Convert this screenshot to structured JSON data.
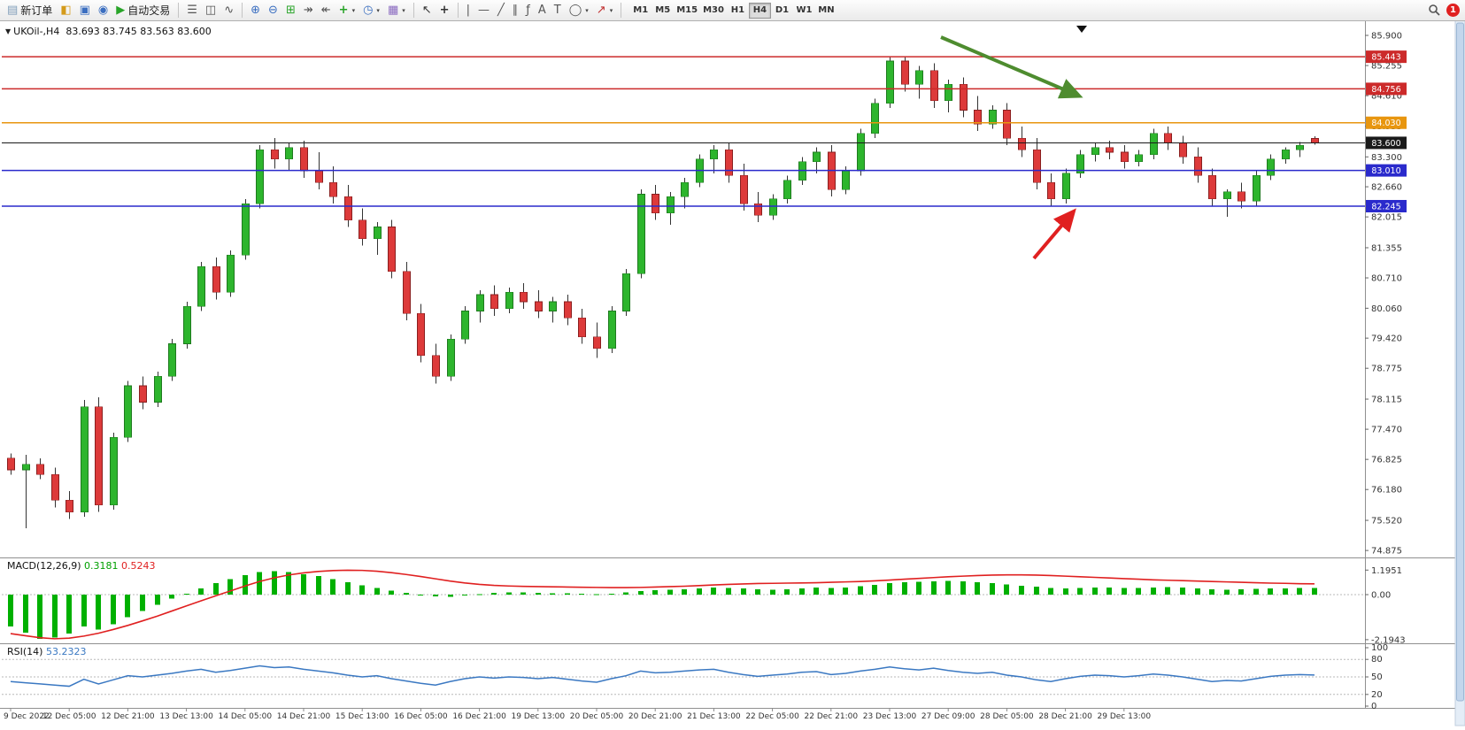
{
  "toolbar": {
    "new_order": "新订单",
    "autotrading": "自动交易",
    "notification_badge": "1",
    "timeframes": [
      "M1",
      "M5",
      "M15",
      "M30",
      "H1",
      "H4",
      "D1",
      "W1",
      "MN"
    ],
    "active_timeframe": "H4",
    "items": [
      {
        "name": "new-order",
        "glyph": "▤",
        "color": "#7f9db9",
        "label": "新订单"
      },
      {
        "name": "new-chart",
        "glyph": "◧",
        "color": "#d49a1a"
      },
      {
        "name": "market-watch",
        "glyph": "▣",
        "color": "#3a6ec0"
      },
      {
        "name": "navigator",
        "glyph": "◉",
        "color": "#3a6ec0"
      },
      {
        "name": "autotrading",
        "glyph": "▶",
        "color": "#28a428",
        "label": "自动交易"
      },
      {
        "sep": true
      },
      {
        "name": "bar-chart-mode",
        "glyph": "☰",
        "color": "#555"
      },
      {
        "name": "candle-chart-mode",
        "glyph": "◫",
        "color": "#555"
      },
      {
        "name": "line-chart-mode",
        "glyph": "∿",
        "color": "#555"
      },
      {
        "sep": true
      },
      {
        "name": "zoom-in",
        "glyph": "⊕",
        "color": "#3a6ec0"
      },
      {
        "name": "zoom-out",
        "glyph": "⊖",
        "color": "#3a6ec0"
      },
      {
        "name": "tile-windows",
        "glyph": "⊞",
        "color": "#28a428"
      },
      {
        "name": "auto-scroll",
        "glyph": "↠",
        "color": "#555"
      },
      {
        "name": "chart-shift",
        "glyph": "↞",
        "color": "#555"
      },
      {
        "name": "indicators",
        "glyph": "+",
        "color": "#28a428",
        "caret": true
      },
      {
        "name": "periods",
        "glyph": "◷",
        "color": "#3a6ec0",
        "caret": true
      },
      {
        "name": "templates",
        "glyph": "▦",
        "color": "#8a6ac0",
        "caret": true
      },
      {
        "sep": true
      },
      {
        "name": "cursor",
        "glyph": "↖",
        "color": "#333"
      },
      {
        "name": "crosshair",
        "glyph": "+",
        "color": "#333"
      },
      {
        "sep": true
      },
      {
        "name": "vertical-line",
        "glyph": "|",
        "color": "#555"
      },
      {
        "name": "horizontal-line",
        "glyph": "—",
        "color": "#555"
      },
      {
        "name": "trendline",
        "glyph": "╱",
        "color": "#555"
      },
      {
        "name": "equidistant-channel",
        "glyph": "∥",
        "color": "#555"
      },
      {
        "name": "fibonacci",
        "glyph": "ƒ",
        "color": "#555"
      },
      {
        "name": "text",
        "glyph": "A",
        "color": "#555"
      },
      {
        "name": "label",
        "glyph": "T",
        "color": "#555"
      },
      {
        "name": "shapes",
        "glyph": "◯",
        "color": "#555",
        "caret": true
      },
      {
        "name": "arrow-objects",
        "glyph": "↗",
        "color": "#c03030",
        "caret": true
      },
      {
        "sep": true
      }
    ]
  },
  "chart": {
    "symbol_info": "UKOil-,H4  83.693 83.745 83.563 83.600",
    "price_axis_labels": [
      "85.900",
      "85.255",
      "84.610",
      "83.955",
      "83.300",
      "82.660",
      "82.015",
      "81.355",
      "80.710",
      "80.060",
      "79.420",
      "78.775",
      "78.115",
      "77.470",
      "76.825",
      "76.180",
      "75.520",
      "74.875"
    ],
    "macd_axis_labels": [
      "1.1951",
      "0.00",
      "-2.1943"
    ],
    "rsi_axis_labels": [
      "100",
      "80",
      "50",
      "20",
      "0"
    ],
    "levels": [
      {
        "value": "85.443",
        "price": 85.443,
        "color": "#cc2a2a",
        "current": false
      },
      {
        "value": "84.756",
        "price": 84.756,
        "color": "#cc2a2a",
        "current": false
      },
      {
        "value": "84.030",
        "price": 84.03,
        "color": "#e8960f",
        "current": false
      },
      {
        "value": "83.600",
        "price": 83.6,
        "color": "#1a1a1a",
        "current": true
      },
      {
        "value": "83.010",
        "price": 83.01,
        "color": "#2a2acc",
        "current": false
      },
      {
        "value": "82.245",
        "price": 82.245,
        "color": "#2a2acc",
        "current": false
      }
    ],
    "colors": {
      "bull": "#2db52d",
      "bull_edge": "#1e7a1e",
      "bear": "#dd3a3a",
      "bear_edge": "#8a1f1f",
      "wick": "#333333",
      "macd_hist": "#00b000",
      "macd_signal": "#e02020",
      "rsi_line": "#3a78c2",
      "arrow_green": "#4e8c2f",
      "arrow_red": "#e02020",
      "axis_text": "#333333"
    }
  },
  "chart_data": {
    "type": "candlestick",
    "symbol": "UKOil-",
    "timeframe": "H4",
    "last_ohlc": {
      "open": 83.693,
      "high": 83.745,
      "low": 83.563,
      "close": 83.6
    },
    "price_range": [
      74.875,
      85.9
    ],
    "horizontal_levels": [
      85.443,
      84.756,
      84.03,
      83.6,
      83.01,
      82.245
    ],
    "x_labels": [
      "9 Dec 2022",
      "12 Dec 05:00",
      "12 Dec 21:00",
      "13 Dec 13:00",
      "14 Dec 05:00",
      "14 Dec 21:00",
      "15 Dec 13:00",
      "16 Dec 05:00",
      "16 Dec 21:00",
      "19 Dec 13:00",
      "20 Dec 05:00",
      "20 Dec 21:00",
      "21 Dec 13:00",
      "22 Dec 05:00",
      "22 Dec 21:00",
      "23 Dec 13:00",
      "27 Dec 09:00",
      "28 Dec 05:00",
      "28 Dec 21:00",
      "29 Dec 13:00"
    ],
    "candles": [
      [
        76.85,
        76.95,
        76.5,
        76.6
      ],
      [
        76.6,
        76.92,
        75.35,
        76.72
      ],
      [
        76.72,
        76.85,
        76.4,
        76.5
      ],
      [
        76.5,
        76.65,
        75.8,
        75.95
      ],
      [
        75.95,
        76.15,
        75.55,
        75.7
      ],
      [
        75.7,
        78.1,
        75.6,
        77.95
      ],
      [
        77.95,
        78.15,
        75.7,
        75.85
      ],
      [
        75.85,
        77.4,
        75.75,
        77.3
      ],
      [
        77.3,
        78.5,
        77.2,
        78.4
      ],
      [
        78.4,
        78.6,
        77.9,
        78.05
      ],
      [
        78.05,
        78.7,
        77.95,
        78.6
      ],
      [
        78.6,
        79.4,
        78.5,
        79.3
      ],
      [
        79.3,
        80.2,
        79.2,
        80.1
      ],
      [
        80.1,
        81.05,
        80.0,
        80.95
      ],
      [
        80.95,
        81.15,
        80.25,
        80.4
      ],
      [
        80.4,
        81.3,
        80.3,
        81.2
      ],
      [
        81.2,
        82.4,
        81.1,
        82.3
      ],
      [
        82.3,
        83.55,
        82.2,
        83.45
      ],
      [
        83.45,
        83.7,
        83.05,
        83.25
      ],
      [
        83.25,
        83.6,
        83.0,
        83.5
      ],
      [
        83.5,
        83.65,
        82.85,
        83.0
      ],
      [
        83.0,
        83.4,
        82.6,
        82.75
      ],
      [
        82.75,
        83.1,
        82.3,
        82.45
      ],
      [
        82.45,
        82.7,
        81.8,
        81.95
      ],
      [
        81.95,
        82.2,
        81.4,
        81.55
      ],
      [
        81.55,
        81.9,
        81.2,
        81.8
      ],
      [
        81.8,
        81.95,
        80.7,
        80.85
      ],
      [
        80.85,
        81.05,
        79.8,
        79.95
      ],
      [
        79.95,
        80.15,
        78.9,
        79.05
      ],
      [
        79.05,
        79.3,
        78.45,
        78.6
      ],
      [
        78.6,
        79.5,
        78.5,
        79.4
      ],
      [
        79.4,
        80.1,
        79.3,
        80.0
      ],
      [
        80.0,
        80.45,
        79.75,
        80.35
      ],
      [
        80.35,
        80.55,
        79.9,
        80.05
      ],
      [
        80.05,
        80.5,
        79.95,
        80.4
      ],
      [
        80.4,
        80.6,
        80.05,
        80.2
      ],
      [
        80.2,
        80.45,
        79.85,
        80.0
      ],
      [
        80.0,
        80.3,
        79.75,
        80.2
      ],
      [
        80.2,
        80.35,
        79.7,
        79.85
      ],
      [
        79.85,
        80.05,
        79.3,
        79.45
      ],
      [
        79.45,
        79.75,
        79.0,
        79.2
      ],
      [
        79.2,
        80.1,
        79.1,
        80.0
      ],
      [
        80.0,
        80.9,
        79.9,
        80.8
      ],
      [
        80.8,
        82.6,
        80.7,
        82.5
      ],
      [
        82.5,
        82.7,
        81.95,
        82.1
      ],
      [
        82.1,
        82.55,
        81.85,
        82.45
      ],
      [
        82.45,
        82.85,
        82.2,
        82.75
      ],
      [
        82.75,
        83.35,
        82.65,
        83.25
      ],
      [
        83.25,
        83.55,
        82.95,
        83.45
      ],
      [
        83.45,
        83.6,
        82.75,
        82.9
      ],
      [
        82.9,
        83.15,
        82.15,
        82.3
      ],
      [
        82.3,
        82.55,
        81.9,
        82.05
      ],
      [
        82.05,
        82.5,
        81.95,
        82.4
      ],
      [
        82.4,
        82.9,
        82.3,
        82.8
      ],
      [
        82.8,
        83.3,
        82.7,
        83.2
      ],
      [
        83.2,
        83.5,
        82.95,
        83.4
      ],
      [
        83.4,
        83.55,
        82.45,
        82.6
      ],
      [
        82.6,
        83.1,
        82.5,
        83.0
      ],
      [
        83.0,
        83.9,
        82.9,
        83.8
      ],
      [
        83.8,
        84.55,
        83.7,
        84.45
      ],
      [
        84.45,
        85.45,
        84.35,
        85.35
      ],
      [
        85.35,
        85.44,
        84.7,
        84.85
      ],
      [
        84.85,
        85.25,
        84.55,
        85.15
      ],
      [
        85.15,
        85.3,
        84.35,
        84.5
      ],
      [
        84.5,
        84.95,
        84.25,
        84.85
      ],
      [
        84.85,
        85.0,
        84.15,
        84.3
      ],
      [
        84.3,
        84.6,
        83.85,
        84.0
      ],
      [
        84.0,
        84.4,
        83.9,
        84.3
      ],
      [
        84.3,
        84.45,
        83.55,
        83.7
      ],
      [
        83.7,
        83.95,
        83.3,
        83.45
      ],
      [
        83.45,
        83.7,
        82.6,
        82.75
      ],
      [
        82.75,
        82.95,
        82.25,
        82.4
      ],
      [
        82.4,
        83.05,
        82.3,
        82.95
      ],
      [
        82.95,
        83.45,
        82.85,
        83.35
      ],
      [
        83.35,
        83.6,
        83.2,
        83.5
      ],
      [
        83.5,
        83.65,
        83.25,
        83.4
      ],
      [
        83.4,
        83.55,
        83.05,
        83.2
      ],
      [
        83.2,
        83.45,
        83.1,
        83.35
      ],
      [
        83.35,
        83.9,
        83.25,
        83.8
      ],
      [
        83.8,
        83.95,
        83.45,
        83.6
      ],
      [
        83.6,
        83.75,
        83.15,
        83.3
      ],
      [
        83.3,
        83.5,
        82.75,
        82.9
      ],
      [
        82.9,
        83.05,
        82.25,
        82.4
      ],
      [
        82.4,
        82.6,
        82.02,
        82.55
      ],
      [
        82.55,
        82.75,
        82.2,
        82.35
      ],
      [
        82.35,
        83.0,
        82.25,
        82.9
      ],
      [
        82.9,
        83.35,
        82.8,
        83.25
      ],
      [
        83.25,
        83.5,
        83.15,
        83.45
      ],
      [
        83.45,
        83.62,
        83.3,
        83.55
      ],
      [
        83.693,
        83.745,
        83.563,
        83.6
      ]
    ],
    "macd": {
      "label": "MACD(12,26,9)",
      "main_value": "0.3181",
      "signal_value": "0.5243",
      "range": [
        -2.1943,
        1.1951
      ],
      "histogram": [
        -1.55,
        -1.85,
        -2.15,
        -2.1,
        -1.9,
        -1.55,
        -1.7,
        -1.45,
        -1.1,
        -0.8,
        -0.5,
        -0.2,
        0.05,
        0.3,
        0.55,
        0.75,
        0.95,
        1.1,
        1.15,
        1.1,
        1.0,
        0.9,
        0.75,
        0.6,
        0.45,
        0.32,
        0.2,
        0.08,
        -0.02,
        -0.08,
        -0.1,
        -0.05,
        0.02,
        0.08,
        0.1,
        0.1,
        0.08,
        0.06,
        0.06,
        0.04,
        0.02,
        0.04,
        0.1,
        0.18,
        0.22,
        0.24,
        0.26,
        0.3,
        0.34,
        0.32,
        0.3,
        0.26,
        0.24,
        0.26,
        0.3,
        0.34,
        0.32,
        0.34,
        0.4,
        0.48,
        0.56,
        0.6,
        0.62,
        0.64,
        0.66,
        0.64,
        0.6,
        0.56,
        0.5,
        0.44,
        0.38,
        0.32,
        0.3,
        0.32,
        0.34,
        0.34,
        0.32,
        0.32,
        0.34,
        0.36,
        0.34,
        0.3,
        0.26,
        0.24,
        0.26,
        0.28,
        0.3,
        0.31,
        0.32,
        0.3181
      ],
      "signal": [
        -1.9,
        -2.0,
        -2.1,
        -2.15,
        -2.12,
        -2.02,
        -1.88,
        -1.7,
        -1.5,
        -1.28,
        -1.05,
        -0.8,
        -0.55,
        -0.3,
        -0.06,
        0.18,
        0.42,
        0.64,
        0.82,
        0.96,
        1.06,
        1.13,
        1.17,
        1.19,
        1.18,
        1.14,
        1.07,
        0.98,
        0.88,
        0.77,
        0.66,
        0.57,
        0.5,
        0.45,
        0.42,
        0.4,
        0.39,
        0.38,
        0.37,
        0.36,
        0.35,
        0.34,
        0.34,
        0.35,
        0.37,
        0.39,
        0.41,
        0.44,
        0.47,
        0.5,
        0.52,
        0.54,
        0.55,
        0.56,
        0.57,
        0.58,
        0.6,
        0.62,
        0.64,
        0.67,
        0.71,
        0.75,
        0.79,
        0.83,
        0.87,
        0.9,
        0.93,
        0.95,
        0.96,
        0.96,
        0.95,
        0.93,
        0.9,
        0.87,
        0.84,
        0.81,
        0.78,
        0.75,
        0.72,
        0.7,
        0.68,
        0.66,
        0.64,
        0.62,
        0.6,
        0.58,
        0.56,
        0.55,
        0.53,
        0.5243
      ]
    },
    "rsi": {
      "label": "RSI(14)",
      "value": "53.2323",
      "range": [
        0,
        100
      ],
      "levels": [
        80,
        50,
        20
      ],
      "values": [
        42,
        40,
        38,
        36,
        34,
        46,
        38,
        45,
        52,
        50,
        53,
        56,
        60,
        63,
        58,
        61,
        65,
        69,
        66,
        67,
        63,
        60,
        57,
        53,
        50,
        52,
        47,
        43,
        39,
        36,
        42,
        47,
        50,
        48,
        50,
        49,
        47,
        49,
        46,
        43,
        41,
        47,
        52,
        60,
        57,
        58,
        60,
        62,
        63,
        58,
        54,
        51,
        53,
        55,
        58,
        59,
        54,
        56,
        60,
        63,
        67,
        64,
        62,
        65,
        61,
        58,
        56,
        58,
        53,
        50,
        45,
        42,
        47,
        51,
        53,
        52,
        50,
        52,
        55,
        53,
        50,
        46,
        42,
        44,
        43,
        47,
        51,
        53,
        54,
        53.2
      ]
    }
  },
  "annotations": {
    "green_arrow": {
      "from": [
        1063,
        42
      ],
      "to": [
        1218,
        108
      ]
    },
    "red_arrow": {
      "from": [
        1168,
        292
      ],
      "to": [
        1212,
        240
      ]
    }
  }
}
